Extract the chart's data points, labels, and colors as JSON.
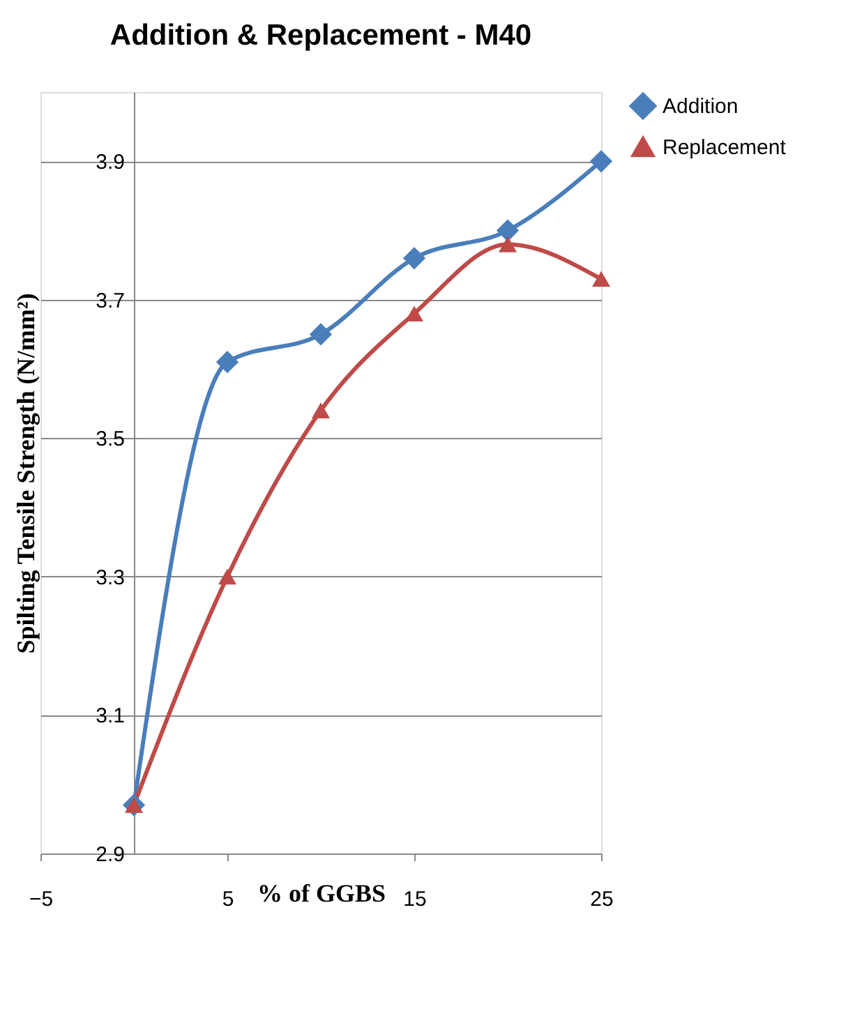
{
  "chart_data": {
    "type": "line",
    "title": "Addition & Replacement - M40",
    "xlabel": "% of GGBS",
    "ylabel": "Spilting  Tensile Strength  (N/mm²)",
    "x": [
      0,
      5,
      10,
      15,
      20,
      25
    ],
    "series": [
      {
        "name": "Addition",
        "color": "#4a7ebb",
        "marker": "diamond",
        "values": [
          2.97,
          3.61,
          3.65,
          3.76,
          3.8,
          3.9
        ]
      },
      {
        "name": "Replacement",
        "color": "#be4b48",
        "marker": "triangle",
        "values": [
          2.97,
          3.3,
          3.54,
          3.68,
          3.78,
          3.73
        ]
      }
    ],
    "xlim": [
      -5,
      25
    ],
    "xticks": [
      -5,
      5,
      15,
      25
    ],
    "ylim": [
      2.9,
      4.0
    ],
    "yticks": [
      2.9,
      3.1,
      3.3,
      3.5,
      3.7,
      3.9
    ],
    "grid": "y",
    "legend": "right",
    "line_style": "solid"
  }
}
